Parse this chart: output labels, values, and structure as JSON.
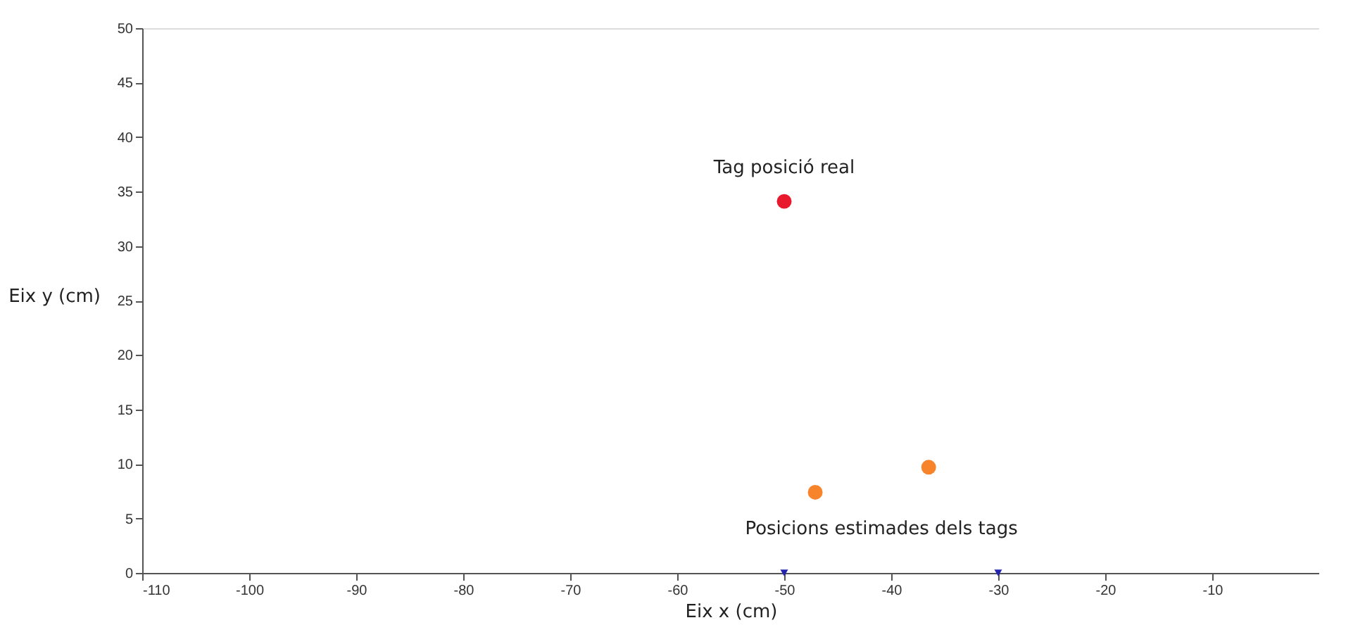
{
  "chart_data": {
    "type": "scatter",
    "xlabel": "Eix x (cm)",
    "ylabel": "Eix y (cm)",
    "xlim": [
      -110,
      0
    ],
    "xticks": [
      -110,
      -100,
      -90,
      -80,
      -70,
      -60,
      -50,
      -40,
      -30,
      -20,
      -10
    ],
    "ylim": [
      0,
      50
    ],
    "yticks": [
      0,
      5,
      10,
      15,
      20,
      25,
      30,
      35,
      40,
      45,
      50
    ],
    "grid": false,
    "series": [
      {
        "color": "#e8192c",
        "x": [
          -50
        ],
        "values": [
          34.1
        ],
        "marker": "circle"
      },
      {
        "color": "#f7842a",
        "x": [
          -47.1,
          -36.5
        ],
        "values": [
          7.4,
          9.7
        ],
        "marker": "circle"
      },
      {
        "color": "#2424b0",
        "x": [
          -50,
          -30
        ],
        "values": [
          0,
          0
        ],
        "marker": "triangle"
      }
    ],
    "annotations": [
      {
        "text": "Tag posició real",
        "x": -50,
        "y": 34.1
      },
      {
        "text": "Posicions estimades dels tags",
        "x": -47.1,
        "y": 7.4
      }
    ]
  }
}
